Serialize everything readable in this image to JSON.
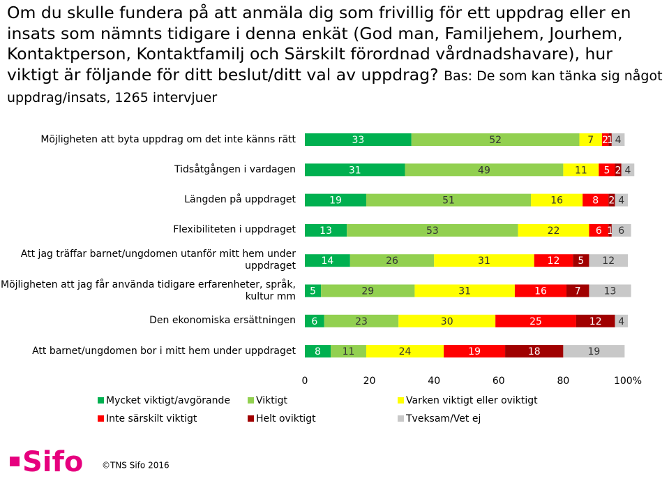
{
  "chart_data": {
    "type": "bar",
    "orientation": "horizontal",
    "stacked": true,
    "title": "Om du skulle fundera på att anmäla dig som frivillig för ett uppdrag eller en insats som nämnts tidigare i denna enkät (God man, Familjehem, Jourhem, Kontaktperson, Kontaktfamilj och Särskilt förordnad vårdnadshavare), hur viktigt är följande för ditt beslut/ditt val av uppdrag?",
    "subtitle": "Bas: De som kan tänka sig något uppdrag/insats, 1265 intervjuer",
    "categories": [
      "Möjligheten att byta uppdrag om det inte känns rätt",
      "Tidsåtgången i vardagen",
      "Längden på uppdraget",
      "Flexibiliteten i uppdraget",
      "Att jag träffar barnet/ungdomen utanför mitt hem under uppdraget",
      "Möjligheten att jag får använda tidigare erfarenheter, språk, kultur mm",
      "Den ekonomiska ersättningen",
      "Att barnet/ungdomen bor i mitt hem under uppdraget"
    ],
    "series": [
      {
        "name": "Mycket viktigt/avgörande",
        "color": "#00b050",
        "values": [
          33,
          31,
          19,
          13,
          14,
          5,
          6,
          8
        ]
      },
      {
        "name": "Viktigt",
        "color": "#92d050",
        "values": [
          52,
          49,
          51,
          53,
          26,
          29,
          23,
          11
        ]
      },
      {
        "name": "Varken viktigt eller oviktigt",
        "color": "#ffff00",
        "values": [
          7,
          11,
          16,
          22,
          31,
          31,
          30,
          24
        ]
      },
      {
        "name": "Inte särskilt viktigt",
        "color": "#ff0000",
        "values": [
          2,
          5,
          8,
          6,
          12,
          16,
          25,
          19
        ]
      },
      {
        "name": "Helt oviktigt",
        "color": "#a00000",
        "values": [
          1,
          2,
          2,
          1,
          5,
          7,
          12,
          18
        ]
      },
      {
        "name": "Tveksam/Vet ej",
        "color": "#c8c8c8",
        "values": [
          4,
          4,
          4,
          6,
          12,
          13,
          4,
          19
        ]
      }
    ],
    "xlim": [
      0,
      100
    ],
    "xticks": [
      0,
      20,
      40,
      60,
      80,
      {
        "value": 100,
        "label": "100%"
      }
    ]
  },
  "footer": {
    "logo": "Sifo",
    "copyright": "©TNS Sifo 2016"
  }
}
